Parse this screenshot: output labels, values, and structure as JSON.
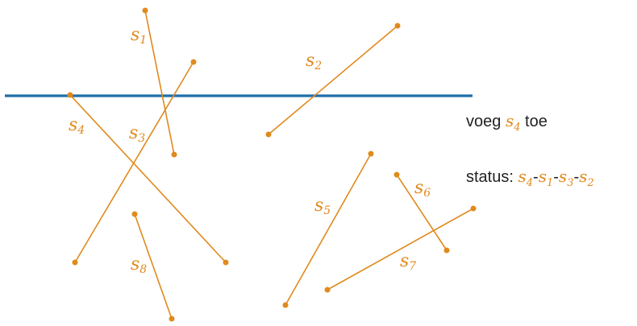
{
  "colors": {
    "segment": "#E08A1E",
    "sweep_line": "#1F6FA8",
    "text": "#222222"
  },
  "segments": [
    {
      "id": "s1",
      "base": "s",
      "sub": "1"
    },
    {
      "id": "s2",
      "base": "s",
      "sub": "2"
    },
    {
      "id": "s3",
      "base": "s",
      "sub": "3"
    },
    {
      "id": "s4",
      "base": "s",
      "sub": "4"
    },
    {
      "id": "s5",
      "base": "s",
      "sub": "5"
    },
    {
      "id": "s6",
      "base": "s",
      "sub": "6"
    },
    {
      "id": "s7",
      "base": "s",
      "sub": "7"
    },
    {
      "id": "s8",
      "base": "s",
      "sub": "8"
    }
  ],
  "panel": {
    "action_prefix": "voeg",
    "action_segment": "s",
    "action_segment_sub": "4",
    "action_suffix": "toe",
    "status_label": "status:",
    "status_order": [
      {
        "base": "s",
        "sub": "4"
      },
      {
        "base": "s",
        "sub": "1"
      },
      {
        "base": "s",
        "sub": "3"
      },
      {
        "base": "s",
        "sub": "2"
      }
    ],
    "separator": "-"
  }
}
